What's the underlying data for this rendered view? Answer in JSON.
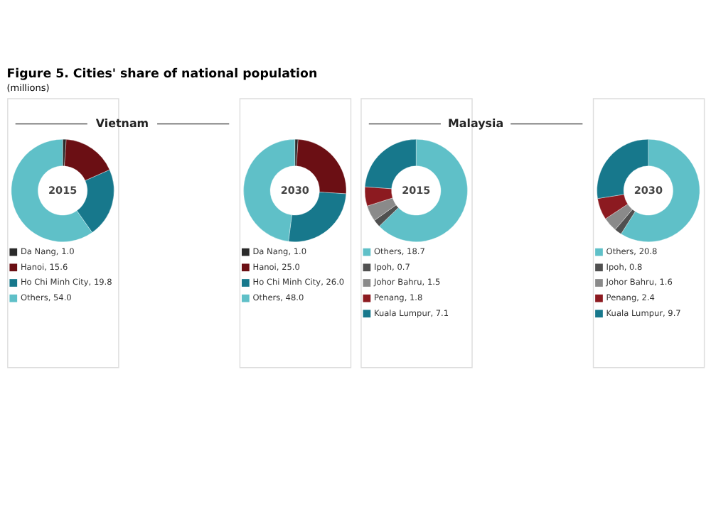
{
  "chart_data": [
    {
      "type": "donut",
      "title": "Figure 5. Cities' share of national population",
      "subtitle": "(millions)",
      "annotations": [
        "Vietnam",
        "2015"
      ],
      "categories": [
        "Da Nang",
        "Hanoi",
        "Ho Chi Minh City",
        "Others"
      ],
      "values": [
        1.0,
        15.6,
        19.8,
        54.0
      ],
      "value_labels": [
        "1.0",
        "15.6",
        "19.8",
        "54.0"
      ],
      "colors": [
        "#2a2a2a",
        "#6b0f14",
        "#17788c",
        "#5fc0c8"
      ],
      "legend": "bottom"
    },
    {
      "type": "donut",
      "annotations": [
        "2030"
      ],
      "categories": [
        "Da Nang",
        "Hanoi",
        "Ho Chi Minh City",
        "Others"
      ],
      "values": [
        1.0,
        25.0,
        26.0,
        48.0
      ],
      "value_labels": [
        "1.0",
        "25.0",
        "26.0",
        "48.0"
      ],
      "colors": [
        "#2a2a2a",
        "#6b0f14",
        "#17788c",
        "#5fc0c8"
      ],
      "legend": "bottom"
    },
    {
      "type": "donut",
      "annotations": [
        "Malaysia",
        "2015"
      ],
      "categories": [
        "Others",
        "Ipoh",
        "Johor Bahru",
        "Penang",
        "Kuala Lumpur"
      ],
      "values": [
        18.7,
        0.7,
        1.5,
        1.8,
        7.1
      ],
      "value_labels": [
        "18.7",
        "0.7",
        "1.5",
        "1.8",
        "7.1"
      ],
      "colors": [
        "#5fc0c8",
        "#505050",
        "#8a8a8a",
        "#8c1a20",
        "#17788c"
      ],
      "legend": "bottom"
    },
    {
      "type": "donut",
      "annotations": [
        "2030"
      ],
      "categories": [
        "Others",
        "Ipoh",
        "Johor Bahru",
        "Penang",
        "Kuala Lumpur"
      ],
      "values": [
        20.8,
        0.8,
        1.6,
        2.4,
        9.7
      ],
      "value_labels": [
        "20.8",
        "0.8",
        "1.6",
        "2.4",
        "9.7"
      ],
      "colors": [
        "#5fc0c8",
        "#505050",
        "#8a8a8a",
        "#8c1a20",
        "#17788c"
      ],
      "legend": "bottom"
    }
  ]
}
